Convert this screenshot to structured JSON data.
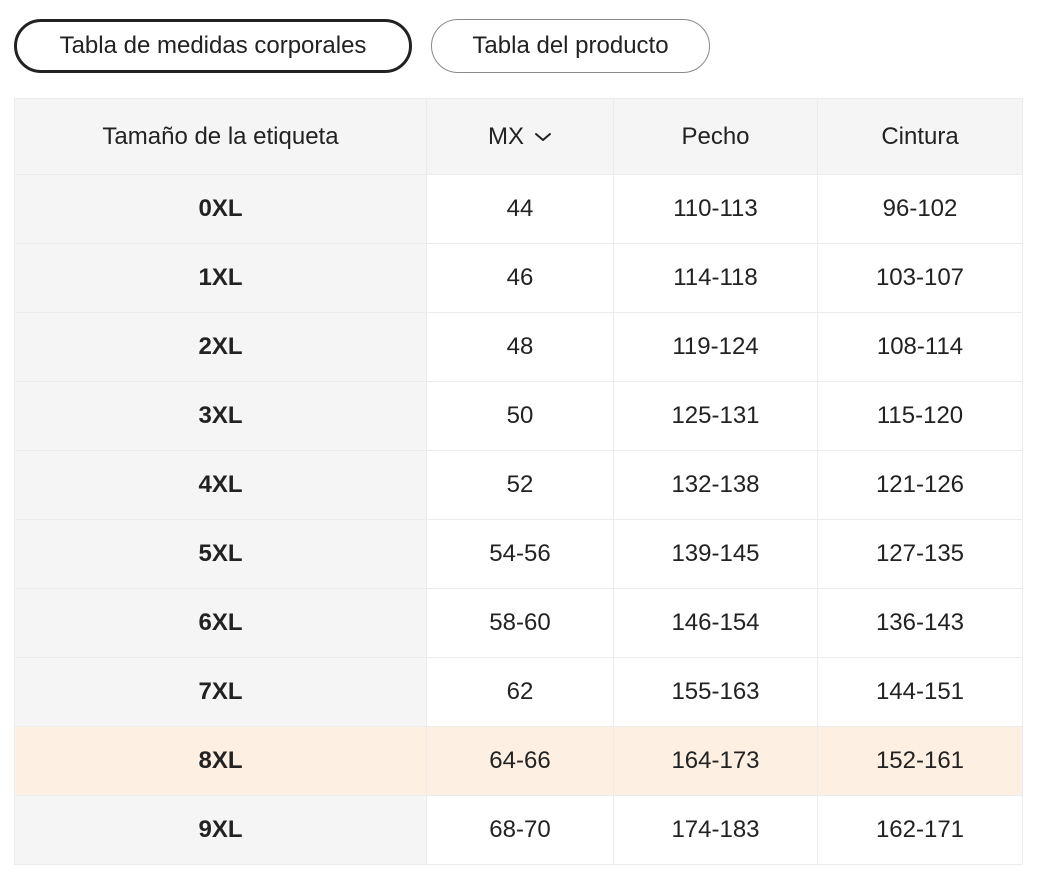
{
  "tabs": [
    {
      "label": "Tabla de medidas corporales",
      "active": true
    },
    {
      "label": "Tabla del producto",
      "active": false
    }
  ],
  "table": {
    "headers": {
      "tag_size": "Tamaño de la etiqueta",
      "region": "MX",
      "chest": "Pecho",
      "waist": "Cintura"
    },
    "region_icon": "chevron-down-icon",
    "highlighted_row": 8,
    "highlight_color": "#fdefe1",
    "rows": [
      {
        "size": "0XL",
        "mx": "44",
        "chest": "110-113",
        "waist": "96-102"
      },
      {
        "size": "1XL",
        "mx": "46",
        "chest": "114-118",
        "waist": "103-107"
      },
      {
        "size": "2XL",
        "mx": "48",
        "chest": "119-124",
        "waist": "108-114"
      },
      {
        "size": "3XL",
        "mx": "50",
        "chest": "125-131",
        "waist": "115-120"
      },
      {
        "size": "4XL",
        "mx": "52",
        "chest": "132-138",
        "waist": "121-126"
      },
      {
        "size": "5XL",
        "mx": "54-56",
        "chest": "139-145",
        "waist": "127-135"
      },
      {
        "size": "6XL",
        "mx": "58-60",
        "chest": "146-154",
        "waist": "136-143"
      },
      {
        "size": "7XL",
        "mx": "62",
        "chest": "155-163",
        "waist": "144-151"
      },
      {
        "size": "8XL",
        "mx": "64-66",
        "chest": "164-173",
        "waist": "152-161"
      },
      {
        "size": "9XL",
        "mx": "68-70",
        "chest": "174-183",
        "waist": "162-171"
      }
    ]
  }
}
